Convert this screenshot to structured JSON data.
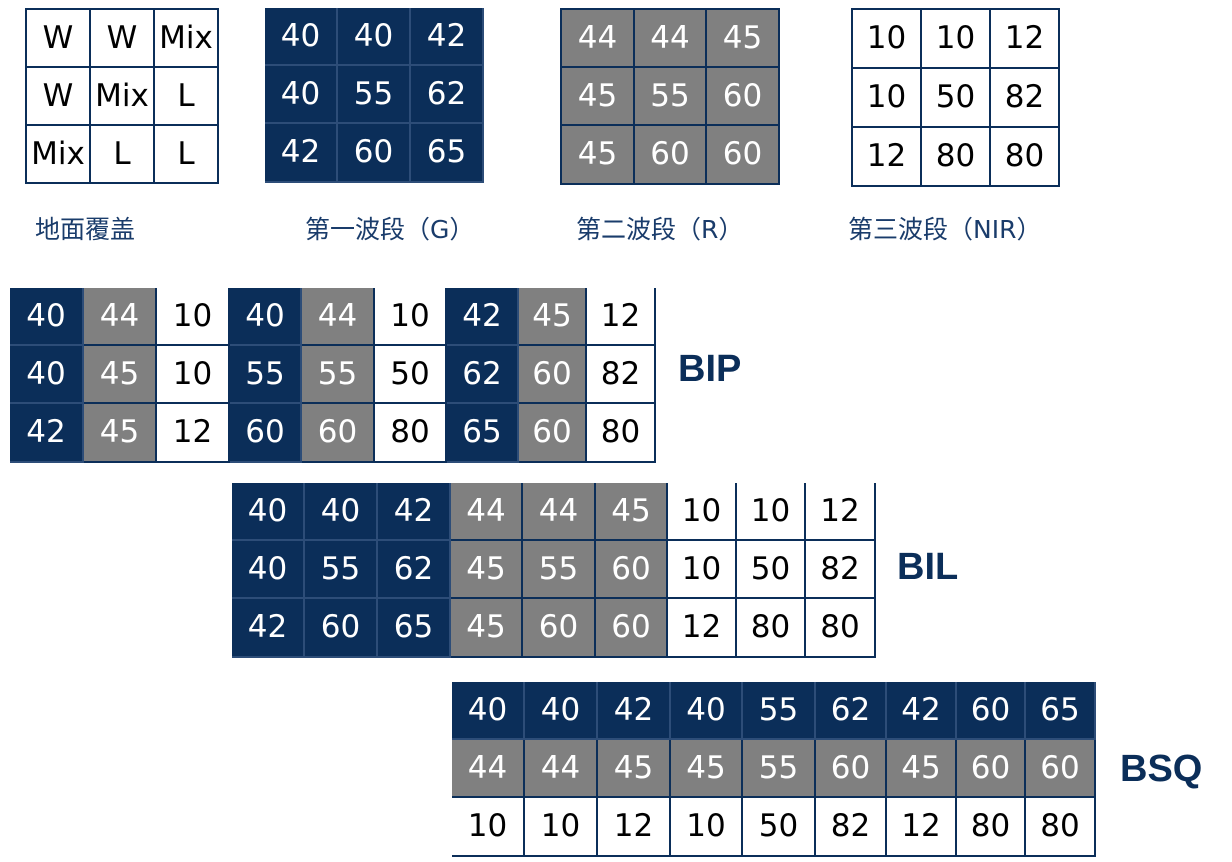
{
  "colors": {
    "band_g": "#0b2e59",
    "band_r": "#808080",
    "band_nir": "#ffffff",
    "accent_text": "#0b2e59"
  },
  "land_cover": {
    "caption": "地面覆盖",
    "cells": [
      [
        "W",
        "W",
        "Mix"
      ],
      [
        "W",
        "Mix",
        "L"
      ],
      [
        "Mix",
        "L",
        "L"
      ]
    ]
  },
  "band_g": {
    "caption": "第一波段（G）",
    "cells": [
      [
        "40",
        "40",
        "42"
      ],
      [
        "40",
        "55",
        "62"
      ],
      [
        "42",
        "60",
        "65"
      ]
    ]
  },
  "band_r": {
    "caption": "第二波段（R）",
    "cells": [
      [
        "44",
        "44",
        "45"
      ],
      [
        "45",
        "55",
        "60"
      ],
      [
        "45",
        "60",
        "60"
      ]
    ]
  },
  "band_nir": {
    "caption": "第三波段（NIR）",
    "cells": [
      [
        "10",
        "10",
        "12"
      ],
      [
        "10",
        "50",
        "82"
      ],
      [
        "12",
        "80",
        "80"
      ]
    ]
  },
  "bip": {
    "label": "BIP",
    "cells": [
      [
        "40",
        "44",
        "10",
        "40",
        "44",
        "10",
        "42",
        "45",
        "12"
      ],
      [
        "40",
        "45",
        "10",
        "55",
        "55",
        "50",
        "62",
        "60",
        "82"
      ],
      [
        "42",
        "45",
        "12",
        "60",
        "60",
        "80",
        "65",
        "60",
        "80"
      ]
    ],
    "bands": [
      [
        "g",
        "r",
        "w",
        "g",
        "r",
        "w",
        "g",
        "r",
        "w"
      ],
      [
        "g",
        "r",
        "w",
        "g",
        "r",
        "w",
        "g",
        "r",
        "w"
      ],
      [
        "g",
        "r",
        "w",
        "g",
        "r",
        "w",
        "g",
        "r",
        "w"
      ]
    ]
  },
  "bil": {
    "label": "BIL",
    "cells": [
      [
        "40",
        "40",
        "42",
        "44",
        "44",
        "45",
        "10",
        "10",
        "12"
      ],
      [
        "40",
        "55",
        "62",
        "45",
        "55",
        "60",
        "10",
        "50",
        "82"
      ],
      [
        "42",
        "60",
        "65",
        "45",
        "60",
        "60",
        "12",
        "80",
        "80"
      ]
    ],
    "bands": [
      [
        "g",
        "g",
        "g",
        "r",
        "r",
        "r",
        "w",
        "w",
        "w"
      ],
      [
        "g",
        "g",
        "g",
        "r",
        "r",
        "r",
        "w",
        "w",
        "w"
      ],
      [
        "g",
        "g",
        "g",
        "r",
        "r",
        "r",
        "w",
        "w",
        "w"
      ]
    ]
  },
  "bsq": {
    "label": "BSQ",
    "cells": [
      [
        "40",
        "40",
        "42",
        "40",
        "55",
        "62",
        "42",
        "60",
        "65"
      ],
      [
        "44",
        "44",
        "45",
        "45",
        "55",
        "60",
        "45",
        "60",
        "60"
      ],
      [
        "10",
        "10",
        "12",
        "10",
        "50",
        "82",
        "12",
        "80",
        "80"
      ]
    ],
    "bands": [
      [
        "g",
        "g",
        "g",
        "g",
        "g",
        "g",
        "g",
        "g",
        "g"
      ],
      [
        "r",
        "r",
        "r",
        "r",
        "r",
        "r",
        "r",
        "r",
        "r"
      ],
      [
        "w",
        "w",
        "w",
        "w",
        "w",
        "w",
        "w",
        "w",
        "w"
      ]
    ]
  }
}
